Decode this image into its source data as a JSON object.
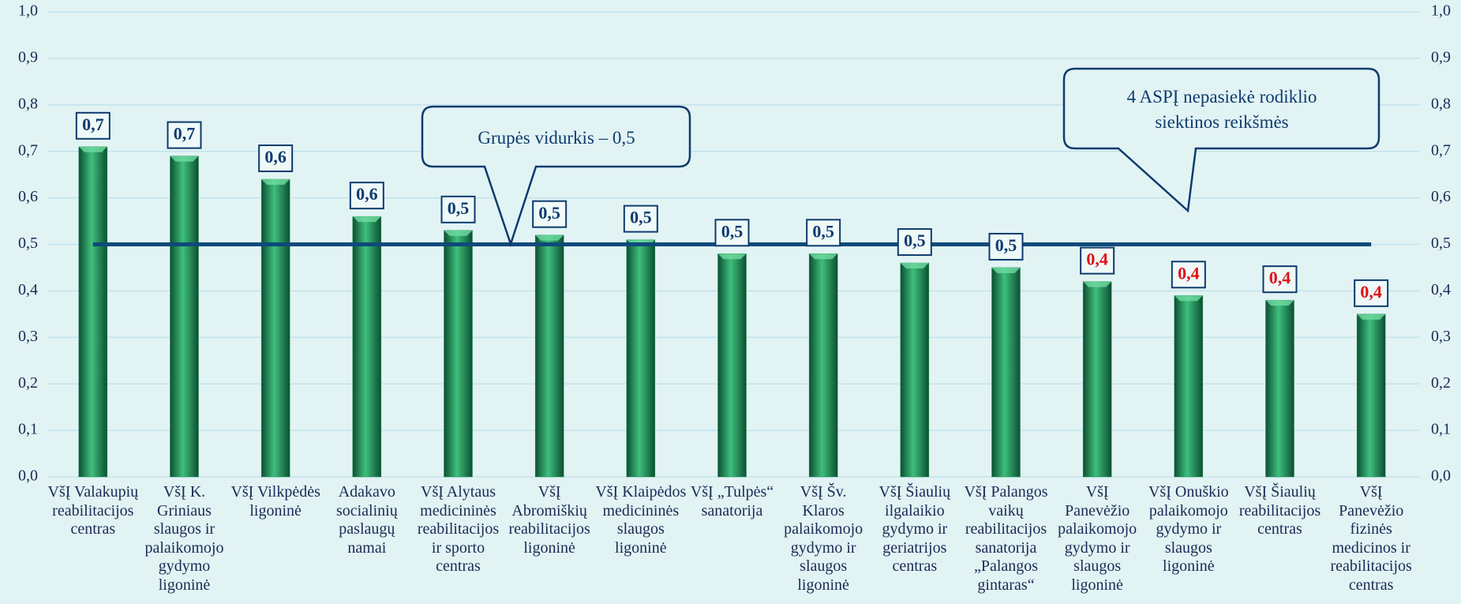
{
  "chart_data": {
    "type": "bar",
    "categories": [
      "VšĮ Valakupių reabilitacijos centras",
      "VšĮ K. Griniaus slaugos ir palaikomojo gydymo ligoninė",
      "VšĮ Vilkpėdės ligoninė",
      "Adakavo socialinių paslaugų namai",
      "VšĮ Alytaus medicininės reabilitacijos ir sporto centras",
      "VšĮ Abromiškių reabilitacijos ligoninė",
      "VšĮ Klaipėdos medicininės slaugos ligoninė",
      "VšĮ „Tulpės“ sanatorija",
      "VšĮ Šv. Klaros palaikomojo gydymo ir slaugos ligoninė",
      "VšĮ Šiaulių ilgalaikio gydymo ir geriatrijos centras",
      "VšĮ Palangos vaikų reabilitacijos sanatorija „Palangos gintaras“",
      "VšĮ Panevėžio palaikomojo gydymo ir slaugos ligoninė",
      "VšĮ Onuškio palaikomojo gydymo ir slaugos ligoninė",
      "VšĮ Šiaulių reabilitacijos centras",
      "VšĮ Panevėžio fizinės medicinos ir reabilitacijos centras"
    ],
    "values": [
      0.71,
      0.69,
      0.64,
      0.56,
      0.53,
      0.52,
      0.51,
      0.48,
      0.48,
      0.46,
      0.45,
      0.42,
      0.39,
      0.38,
      0.35
    ],
    "value_labels": [
      "0,7",
      "0,7",
      "0,6",
      "0,6",
      "0,5",
      "0,5",
      "0,5",
      "0,5",
      "0,5",
      "0,5",
      "0,5",
      "0,4",
      "0,4",
      "0,4",
      "0,4"
    ],
    "value_label_colors": [
      "#0d3b6e",
      "#0d3b6e",
      "#0d3b6e",
      "#0d3b6e",
      "#0d3b6e",
      "#0d3b6e",
      "#0d3b6e",
      "#0d3b6e",
      "#0d3b6e",
      "#0d3b6e",
      "#0d3b6e",
      "#e0101a",
      "#e0101a",
      "#e0101a",
      "#e0101a"
    ],
    "color": "#1f8f55",
    "ylim": [
      0,
      1
    ],
    "yticks": [
      {
        "value": 0,
        "label": "0,0"
      },
      {
        "value": 0.1,
        "label": "0,1"
      },
      {
        "value": 0.2,
        "label": "0,2"
      },
      {
        "value": 0.3,
        "label": "0,3"
      },
      {
        "value": 0.4,
        "label": "0,4"
      },
      {
        "value": 0.5,
        "label": "0,5"
      },
      {
        "value": 0.6,
        "label": "0,6"
      },
      {
        "value": 0.7,
        "label": "0,7"
      },
      {
        "value": 0.8,
        "label": "0,8"
      },
      {
        "value": 0.9,
        "label": "0,9"
      },
      {
        "value": 1,
        "label": "1,0"
      }
    ],
    "y2lim": [
      0,
      1
    ],
    "y2ticks": [
      {
        "value": 0,
        "label": "0,0"
      },
      {
        "value": 0.1,
        "label": "0,1"
      },
      {
        "value": 0.2,
        "label": "0,2"
      },
      {
        "value": 0.3,
        "label": "0,3"
      },
      {
        "value": 0.4,
        "label": "0,4"
      },
      {
        "value": 0.5,
        "label": "0,5"
      },
      {
        "value": 0.6,
        "label": "0,6"
      },
      {
        "value": 0.7,
        "label": "0,7"
      },
      {
        "value": 0.8,
        "label": "0,8"
      },
      {
        "value": 0.9,
        "label": "0,9"
      },
      {
        "value": 1,
        "label": "1,0"
      }
    ],
    "grid": true,
    "reference_line": {
      "value": 0.5,
      "color": "#0d4a7a"
    },
    "annotations": [
      {
        "text": "Grupės vidurkis – 0,5"
      },
      {
        "text": "4 ASPĮ nepasiekė rodiklio siektinos reikšmės"
      }
    ]
  }
}
